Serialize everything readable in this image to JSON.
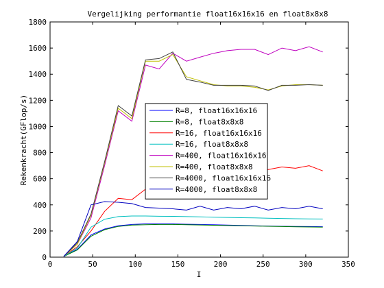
{
  "chart_data": {
    "type": "line",
    "title": "Vergelijking performantie float16x16x16 en float8x8x8",
    "xlabel": "I",
    "ylabel": "Rekenkracht(GFlop/s)",
    "xlim": [
      0,
      350
    ],
    "ylim": [
      0,
      1800
    ],
    "xticks": [
      0,
      50,
      100,
      150,
      200,
      250,
      300,
      350
    ],
    "yticks": [
      0,
      200,
      400,
      600,
      800,
      1000,
      1200,
      1400,
      1600,
      1800
    ],
    "grid": false,
    "legend_position": "center",
    "x": [
      16,
      32,
      48,
      64,
      80,
      96,
      112,
      128,
      144,
      160,
      176,
      192,
      208,
      224,
      240,
      256,
      272,
      288,
      304,
      320
    ],
    "series": [
      {
        "name": "R=8, float16x16x16",
        "color": "#0000ff",
        "values": [
          5,
          60,
          170,
          215,
          240,
          250,
          255,
          255,
          255,
          252,
          250,
          248,
          245,
          243,
          240,
          238,
          236,
          235,
          234,
          233
        ]
      },
      {
        "name": "R=8, float8x8x8",
        "color": "#008000",
        "values": [
          5,
          55,
          160,
          210,
          235,
          245,
          248,
          250,
          250,
          248,
          246,
          244,
          242,
          240,
          238,
          236,
          234,
          232,
          231,
          230
        ]
      },
      {
        "name": "R=16, float16x16x16",
        "color": "#ff0000",
        "values": [
          5,
          80,
          200,
          350,
          450,
          440,
          520,
          560,
          580,
          600,
          610,
          620,
          630,
          640,
          650,
          670,
          690,
          680,
          700,
          660
        ]
      },
      {
        "name": "R=16, float8x8x8",
        "color": "#00bfbf",
        "values": [
          5,
          70,
          230,
          290,
          310,
          315,
          315,
          313,
          312,
          310,
          308,
          306,
          304,
          302,
          300,
          298,
          296,
          294,
          293,
          292
        ]
      },
      {
        "name": "R=400, float16x16x16",
        "color": "#bf00bf",
        "values": [
          5,
          100,
          300,
          700,
          1120,
          1040,
          1470,
          1440,
          1560,
          1500,
          1530,
          1560,
          1580,
          1590,
          1590,
          1550,
          1600,
          1580,
          1610,
          1570
        ]
      },
      {
        "name": "R=400, float8x8x8",
        "color": "#bfbf00",
        "values": [
          5,
          100,
          320,
          720,
          1140,
          1060,
          1500,
          1500,
          1550,
          1380,
          1350,
          1320,
          1310,
          1310,
          1300,
          1280,
          1310,
          1320,
          1320,
          1315
        ]
      },
      {
        "name": "R=4000, float16x16x16",
        "color": "#404040",
        "values": [
          5,
          110,
          330,
          730,
          1160,
          1080,
          1510,
          1520,
          1570,
          1360,
          1340,
          1315,
          1315,
          1315,
          1310,
          1275,
          1315,
          1315,
          1320,
          1315
        ]
      },
      {
        "name": "R=4000, float8x8x8",
        "color": "#0000bf",
        "values": [
          5,
          120,
          400,
          425,
          420,
          410,
          380,
          375,
          370,
          360,
          390,
          360,
          380,
          370,
          390,
          360,
          380,
          370,
          390,
          370
        ]
      }
    ]
  }
}
